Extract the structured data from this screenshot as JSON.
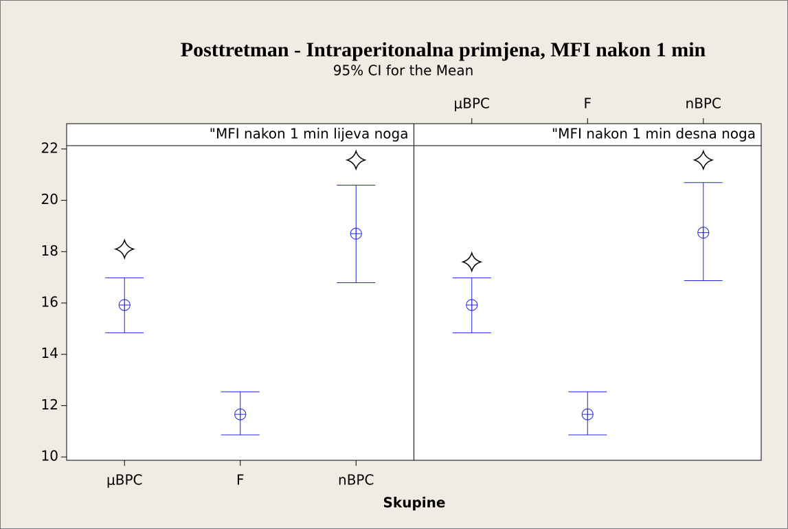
{
  "chart_data": {
    "type": "interval",
    "title": "Posttretman - Intraperitonalna primjena, MFI nakon 1 min",
    "subtitle": "95% CI for the Mean",
    "xlabel": "Skupine",
    "categories": [
      "μBPC",
      "F",
      "nBPC"
    ],
    "ylim": [
      9.87,
      22.13
    ],
    "yticks": [
      10,
      12,
      14,
      16,
      18,
      20,
      22
    ],
    "color": "#2020e0",
    "marker_color": "#000000",
    "panels": [
      {
        "name": "\"MFI nakon 1 min lijeva noga",
        "means": [
          15.92,
          11.66,
          18.7
        ],
        "lower": [
          14.84,
          10.86,
          16.79
        ],
        "upper": [
          16.98,
          12.54,
          20.59
        ],
        "markers": [
          18.1,
          null,
          21.57
        ]
      },
      {
        "name": "\"MFI nakon 1 min desna noga",
        "means": [
          15.92,
          11.66,
          18.74
        ],
        "lower": [
          14.84,
          10.86,
          16.87
        ],
        "upper": [
          16.98,
          12.54,
          20.69
        ],
        "markers": [
          17.6,
          null,
          21.57
        ]
      }
    ]
  }
}
